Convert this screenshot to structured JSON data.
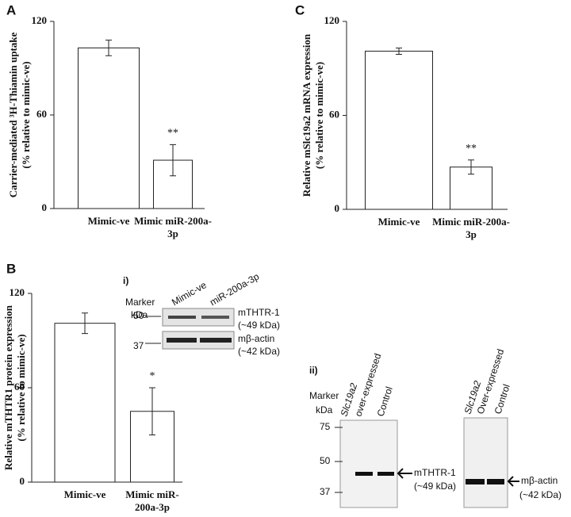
{
  "chart_data": [
    {
      "type": "bar",
      "panel": "A",
      "ylabel": [
        "Carrier-mediated ³H-Thiamin uptake",
        "(% relative to mimic-ve)"
      ],
      "categories": [
        "Mimic-ve",
        "Mimic miR-200a-3p"
      ],
      "values": [
        103,
        31
      ],
      "errors": [
        5,
        10
      ],
      "annotations": [
        null,
        "**"
      ],
      "color": "#ffffff",
      "ylim": [
        0,
        120
      ],
      "yticks": [
        0,
        60,
        120
      ]
    },
    {
      "type": "bar",
      "panel": "B",
      "ylabel": [
        "Relative mTHTR1 protein expression",
        "(% relative to mimic-ve)"
      ],
      "categories": [
        "Mimic-ve",
        "Mimic miR-200a-3p"
      ],
      "values": [
        101,
        45
      ],
      "errors": [
        6.5,
        15
      ],
      "annotations": [
        null,
        "*"
      ],
      "color": "#ffffff",
      "ylim": [
        0,
        120
      ],
      "yticks": [
        0,
        60,
        120
      ]
    },
    {
      "type": "bar",
      "panel": "C",
      "ylabel": [
        "Relative mSlc19a2 mRNA expression",
        "(% relative to mimic-ve)"
      ],
      "categories": [
        "Mimic-ve",
        "Mimic miR-200a-3p"
      ],
      "values": [
        101,
        27
      ],
      "errors": [
        2,
        4.5
      ],
      "annotations": [
        null,
        "**"
      ],
      "color": "#ffffff",
      "ylim": [
        0,
        120
      ],
      "yticks": [
        0,
        60,
        120
      ]
    }
  ],
  "blots": {
    "i": {
      "label": "i)",
      "marker": [
        "Marker",
        "kDa"
      ],
      "lanes": [
        "Mimic-ve",
        "miR-200a-3p"
      ],
      "markers": [
        "50",
        "37"
      ],
      "bands": [
        [
          "mTHTR-1",
          "(~49 kDa)"
        ],
        [
          "mβ-actin",
          "(~42 kDa)"
        ]
      ]
    },
    "ii": {
      "label": "ii)",
      "marker": [
        "Marker",
        "kDa"
      ],
      "markers": [
        "75",
        "50",
        "37"
      ],
      "left_lanes": [
        "Slc19a2",
        "over-expressed",
        "Control"
      ],
      "left_band": [
        "mTHTR-1",
        "(~49 kDa)"
      ],
      "right_lanes": [
        "Slc19a2",
        "Over-expressed",
        "Control"
      ],
      "right_band": [
        "mβ-actin",
        "(~42 kDa)"
      ]
    }
  }
}
